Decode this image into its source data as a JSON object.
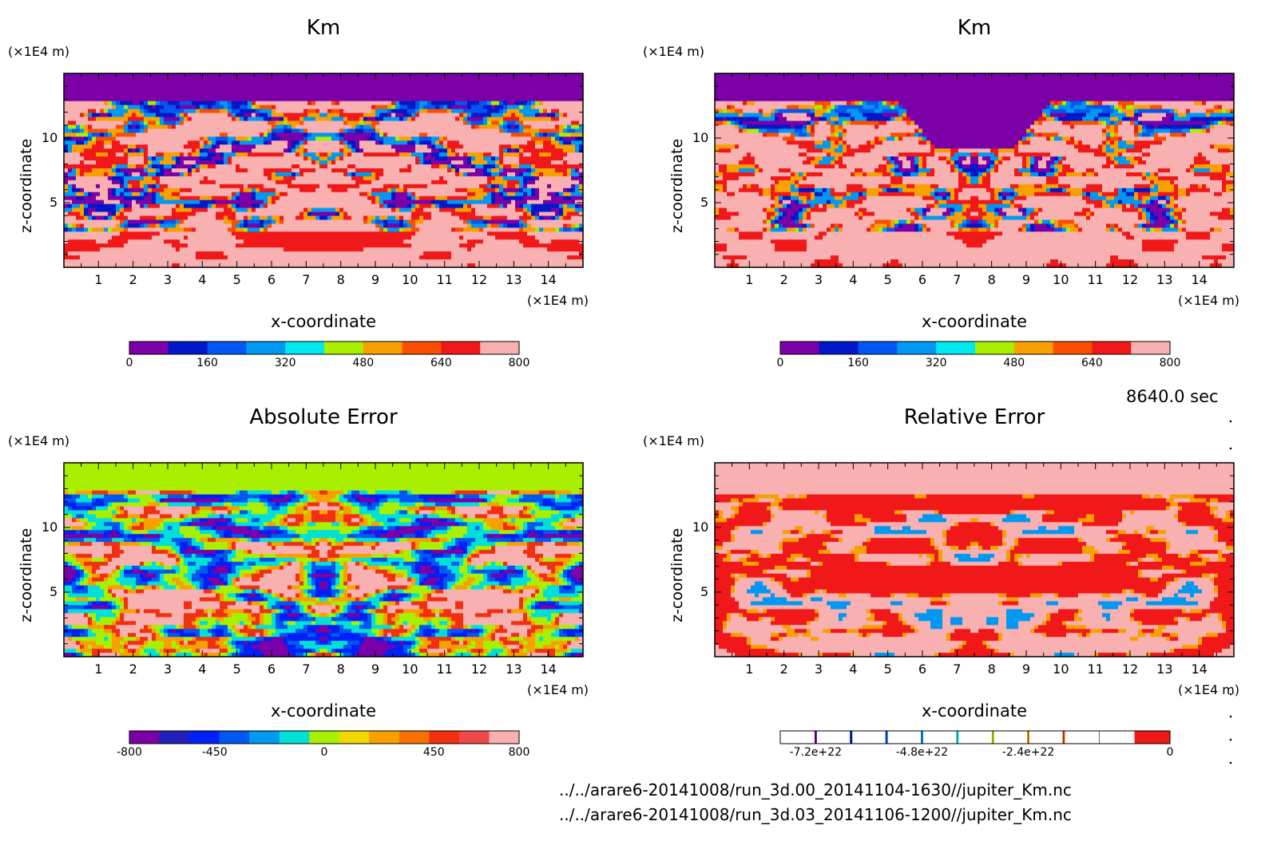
{
  "timestamp": "8640.0 sec",
  "footer": {
    "file1": "../../arare6-20141008/run_3d.00_20141104-1630//jupiter_Km.nc",
    "file2": "../../arare6-20141008/run_3d.03_20141106-1200//jupiter_Km.nc"
  },
  "colors": {
    "km_palette": [
      "#7b00a8",
      "#0018c8",
      "#0058f0",
      "#0098f0",
      "#00e8f0",
      "#a8f000",
      "#f8a000",
      "#f85000",
      "#f01818",
      "#f8b0b0"
    ],
    "abs_palette": [
      "#7b00a8",
      "#2020b8",
      "#0020f8",
      "#0058f0",
      "#0098f0",
      "#00e0d8",
      "#a8f000",
      "#f0d800",
      "#f8a000",
      "#f87000",
      "#f03010",
      "#f04848",
      "#f8b0b0"
    ],
    "rel_bar_colors": [
      "#ffffff",
      "#7b00a8",
      "#0018c8",
      "#0058f0",
      "#0098f0",
      "#00e8f0",
      "#a8f000",
      "#f8a000",
      "#f85000",
      "#ffffff",
      "#f01818"
    ]
  },
  "chart_data": [
    {
      "type": "heatmap",
      "title": "Km",
      "xlabel": "x-coordinate",
      "ylabel": "z-coordinate",
      "x_unit": "(×1E4 m)",
      "y_unit": "(×1E4 m)",
      "xlim": [
        0,
        15
      ],
      "ylim": [
        0,
        15
      ],
      "x_ticks": [
        1,
        2,
        3,
        4,
        5,
        6,
        7,
        8,
        9,
        10,
        11,
        12,
        13,
        14
      ],
      "y_ticks": [
        5,
        10
      ],
      "colorbar": {
        "min": 0,
        "max": 800,
        "labels": [
          "0",
          "160",
          "320",
          "480",
          "640",
          "800"
        ]
      },
      "pattern": "km1"
    },
    {
      "type": "heatmap",
      "title": "Km",
      "xlabel": "x-coordinate",
      "ylabel": "z-coordinate",
      "x_unit": "(×1E4 m)",
      "y_unit": "(×1E4 m)",
      "xlim": [
        0,
        15
      ],
      "ylim": [
        0,
        15
      ],
      "x_ticks": [
        1,
        2,
        3,
        4,
        5,
        6,
        7,
        8,
        9,
        10,
        11,
        12,
        13,
        14
      ],
      "y_ticks": [
        5,
        10
      ],
      "colorbar": {
        "min": 0,
        "max": 800,
        "labels": [
          "0",
          "160",
          "320",
          "480",
          "640",
          "800"
        ]
      },
      "pattern": "km2"
    },
    {
      "type": "heatmap",
      "title": "Absolute Error",
      "xlabel": "x-coordinate",
      "ylabel": "z-coordinate",
      "x_unit": "(×1E4 m)",
      "y_unit": "(×1E4 m)",
      "xlim": [
        0,
        15
      ],
      "ylim": [
        0,
        15
      ],
      "x_ticks": [
        1,
        2,
        3,
        4,
        5,
        6,
        7,
        8,
        9,
        10,
        11,
        12,
        13,
        14
      ],
      "y_ticks": [
        5,
        10
      ],
      "colorbar": {
        "min": -800,
        "max": 800,
        "labels": [
          "-800",
          "-450",
          "0",
          "450",
          "800"
        ]
      },
      "pattern": "abs"
    },
    {
      "type": "heatmap",
      "title": "Relative Error",
      "xlabel": "x-coordinate",
      "ylabel": "z-coordinate",
      "x_unit": "(×1E4 m)",
      "y_unit": "(×1E4 m)",
      "xlim": [
        0,
        15
      ],
      "ylim": [
        0,
        15
      ],
      "x_ticks": [
        1,
        2,
        3,
        4,
        5,
        6,
        7,
        8,
        9,
        10,
        11,
        12,
        13,
        14
      ],
      "y_ticks": [
        5,
        10
      ],
      "colorbar": {
        "min": -8e+22,
        "max": 0,
        "labels": [
          "-7.2e+22",
          "-4.8e+22",
          "-2.4e+22",
          "0"
        ]
      },
      "pattern": "rel"
    }
  ]
}
